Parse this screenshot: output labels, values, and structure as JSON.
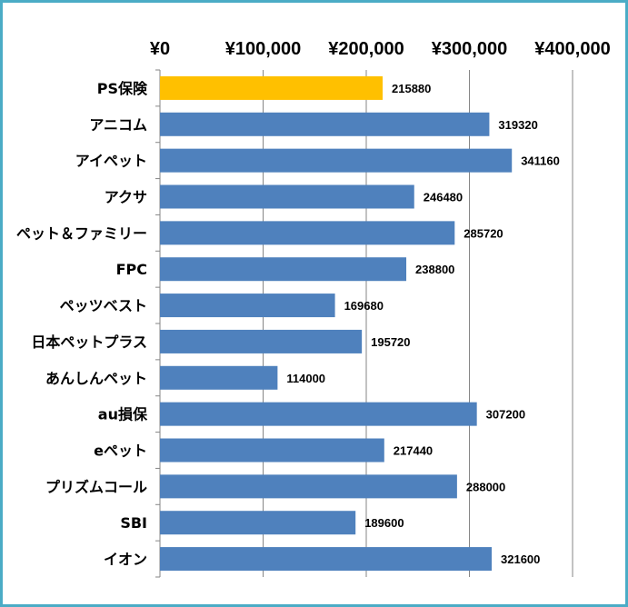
{
  "chart_data": {
    "type": "bar",
    "orientation": "horizontal",
    "title": "",
    "xlabel": "",
    "ylabel": "",
    "xlim": [
      0,
      400000
    ],
    "x_axis_position": "top",
    "tick_values": [
      0,
      100000,
      200000,
      300000,
      400000
    ],
    "tick_labels": [
      "¥0",
      "¥100,000",
      "¥200,000",
      "¥300,000",
      "¥400,000"
    ],
    "grid": true,
    "legend": "none",
    "categories": [
      "PS保険",
      "アニコム",
      "アイペット",
      "アクサ",
      "ペット＆ファミリー",
      "FPC",
      "ペッツベスト",
      "日本ペットプラス",
      "あんしんペット",
      "au損保",
      "eペット",
      "プリズムコール",
      "SBI",
      "イオン"
    ],
    "values": [
      215880,
      319320,
      341160,
      246480,
      285720,
      238800,
      169680,
      195720,
      114000,
      307200,
      217440,
      288000,
      189600,
      321600
    ],
    "data_labels": [
      "215880",
      "319320",
      "341160",
      "246480",
      "285720",
      "238800",
      "169680",
      "195720",
      "114000",
      "307200",
      "217440",
      "288000",
      "189600",
      "321600"
    ],
    "colors": {
      "bar": "#4f81bd",
      "highlight": "#ffc000",
      "grid": "#868686",
      "frame": "#4bacc6"
    },
    "highlight_index": 0
  }
}
